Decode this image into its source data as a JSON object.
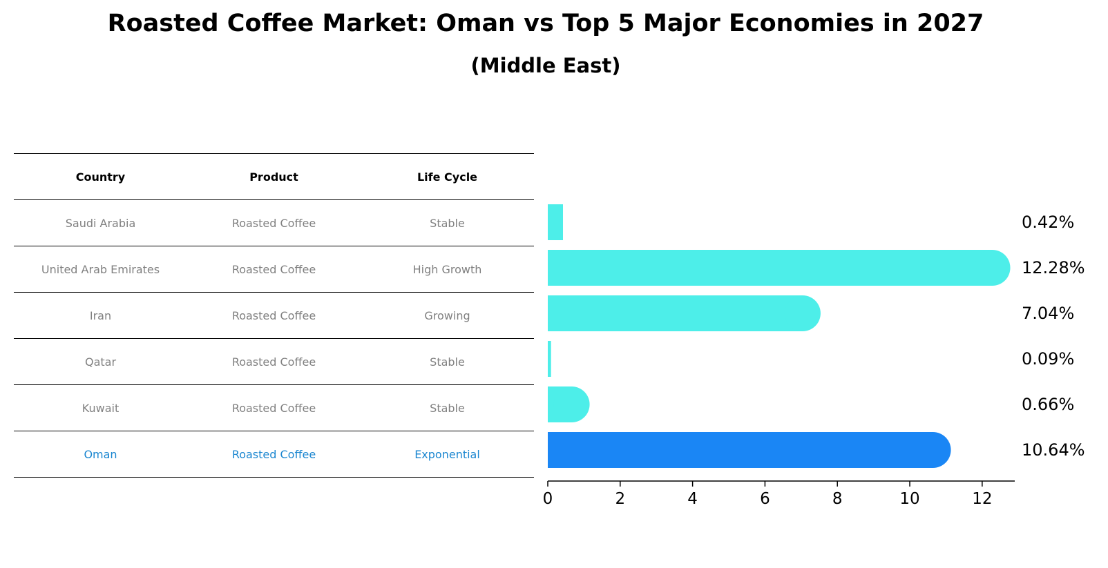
{
  "header": {
    "title": "Roasted Coffee Market: Oman vs Top 5 Major Economies in 2027",
    "subtitle": "(Middle East)"
  },
  "table": {
    "columns": [
      "Country",
      "Product",
      "Life Cycle"
    ],
    "rows": [
      {
        "country": "Saudi Arabia",
        "product": "Roasted Coffee",
        "life_cycle": "Stable"
      },
      {
        "country": "United Arab Emirates",
        "product": "Roasted Coffee",
        "life_cycle": "High Growth"
      },
      {
        "country": "Iran",
        "product": "Roasted Coffee",
        "life_cycle": "Growing"
      },
      {
        "country": "Qatar",
        "product": "Roasted Coffee",
        "life_cycle": "Stable"
      },
      {
        "country": "Kuwait",
        "product": "Roasted Coffee",
        "life_cycle": "Stable"
      },
      {
        "country": "Oman",
        "product": "Roasted Coffee",
        "life_cycle": "Exponential"
      }
    ]
  },
  "colors": {
    "bar": "#4deee9",
    "highlight_bar": "#1a86f5",
    "highlight_text": "#1a86d0",
    "row_text": "#808080"
  },
  "chart_data": {
    "type": "bar",
    "orientation": "horizontal",
    "categories": [
      "Saudi Arabia",
      "United Arab Emirates",
      "Iran",
      "Qatar",
      "Kuwait",
      "Oman"
    ],
    "values": [
      0.42,
      12.28,
      7.04,
      0.09,
      0.66,
      10.64
    ],
    "data_labels": [
      "0.42%",
      "12.28%",
      "7.04%",
      "0.09%",
      "0.66%",
      "10.64%"
    ],
    "highlight": "Oman",
    "xlim": [
      0,
      12.9
    ],
    "xticks": [
      0,
      2,
      4,
      6,
      8,
      10,
      12
    ],
    "grid": false
  }
}
